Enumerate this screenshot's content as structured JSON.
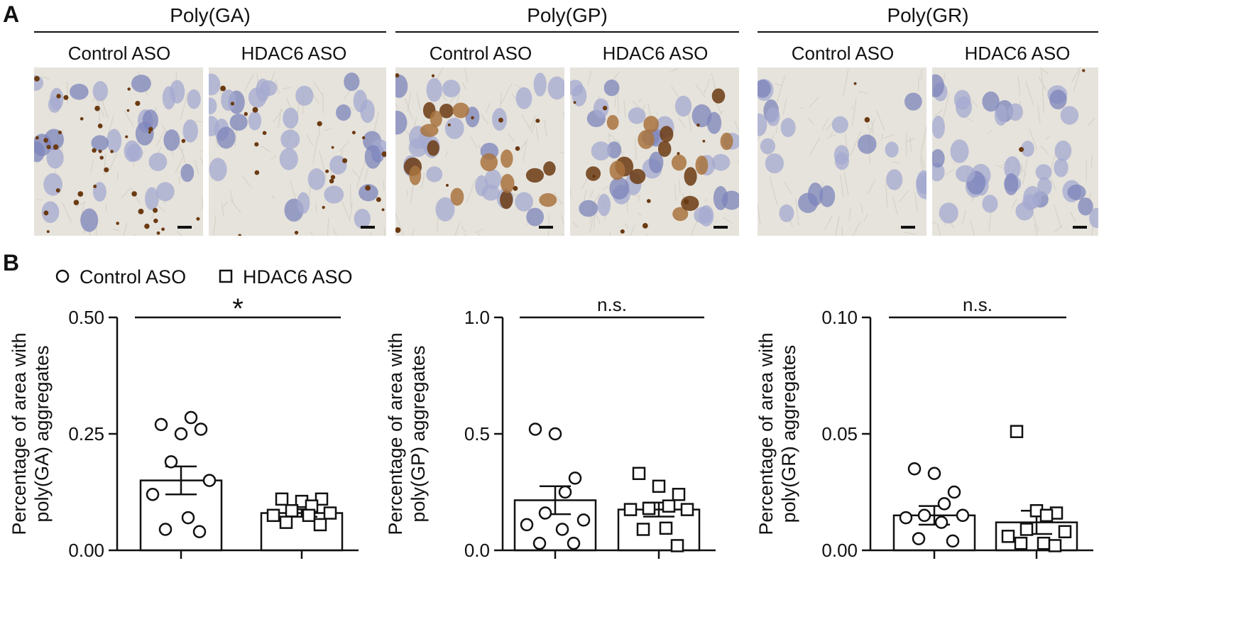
{
  "panel_a": {
    "letter": "A",
    "groups": [
      {
        "title": "Poly(GA)",
        "conditions": [
          "Control ASO",
          "HDAC6 ASO"
        ]
      },
      {
        "title": "Poly(GP)",
        "conditions": [
          "Control ASO",
          "HDAC6 ASO"
        ]
      },
      {
        "title": "Poly(GR)",
        "conditions": [
          "Control ASO",
          "HDAC6 ASO"
        ]
      }
    ],
    "colors": {
      "background": "#e6e3dc",
      "nucleus": "#a4aad0",
      "nucleus_dark": "#7c84bb",
      "aggregate": "#6b3a12",
      "aggregate_light": "#a8733e"
    }
  },
  "panel_b": {
    "letter": "B",
    "legend": {
      "control": "Control ASO",
      "hdac6": "HDAC6 ASO"
    }
  },
  "chart_data": [
    {
      "type": "bar",
      "ylabel_line1": "Percentage of area with",
      "ylabel_line2": "poly(GA) aggregates",
      "ylim": [
        0,
        0.5
      ],
      "ticks": [
        0,
        0.25,
        0.5
      ],
      "tick_labels": [
        "0.00",
        "0.25",
        "0.50"
      ],
      "significance": "*",
      "series": [
        {
          "name": "Control ASO",
          "mean": 0.15,
          "sem": 0.03,
          "points": [
            0.27,
            0.25,
            0.26,
            0.285,
            0.19,
            0.15,
            0.12,
            0.07,
            0.045,
            0.04
          ]
        },
        {
          "name": "HDAC6 ASO",
          "mean": 0.08,
          "sem": 0.008,
          "points": [
            0.11,
            0.105,
            0.11,
            0.095,
            0.085,
            0.08,
            0.075,
            0.075,
            0.06,
            0.055
          ]
        }
      ]
    },
    {
      "type": "bar",
      "ylabel_line1": "Percentage of area with",
      "ylabel_line2": "poly(GP) aggregates",
      "ylim": [
        0,
        1.0
      ],
      "ticks": [
        0,
        0.5,
        1.0
      ],
      "tick_labels": [
        "0.0",
        "0.5",
        "1.0"
      ],
      "significance": "n.s.",
      "series": [
        {
          "name": "Control ASO",
          "mean": 0.215,
          "sem": 0.06,
          "points": [
            0.52,
            0.5,
            0.31,
            0.25,
            0.16,
            0.13,
            0.11,
            0.09,
            0.03,
            0.03
          ]
        },
        {
          "name": "HDAC6 ASO",
          "mean": 0.175,
          "sem": 0.03,
          "points": [
            0.33,
            0.275,
            0.24,
            0.19,
            0.18,
            0.175,
            0.175,
            0.095,
            0.09,
            0.02
          ]
        }
      ]
    },
    {
      "type": "bar",
      "ylabel_line1": "Percentage of area with",
      "ylabel_line2": "poly(GR) aggregates",
      "ylim": [
        0,
        0.1
      ],
      "ticks": [
        0,
        0.05,
        0.1
      ],
      "tick_labels": [
        "0.00",
        "0.05",
        "0.10"
      ],
      "significance": "n.s.",
      "series": [
        {
          "name": "Control ASO",
          "mean": 0.015,
          "sem": 0.004,
          "points": [
            0.035,
            0.033,
            0.025,
            0.02,
            0.015,
            0.015,
            0.014,
            0.012,
            0.005,
            0.004
          ]
        },
        {
          "name": "HDAC6 ASO",
          "mean": 0.012,
          "sem": 0.005,
          "points": [
            0.051,
            0.017,
            0.016,
            0.015,
            0.009,
            0.008,
            0.006,
            0.003,
            0.003,
            0.002
          ]
        }
      ]
    }
  ]
}
